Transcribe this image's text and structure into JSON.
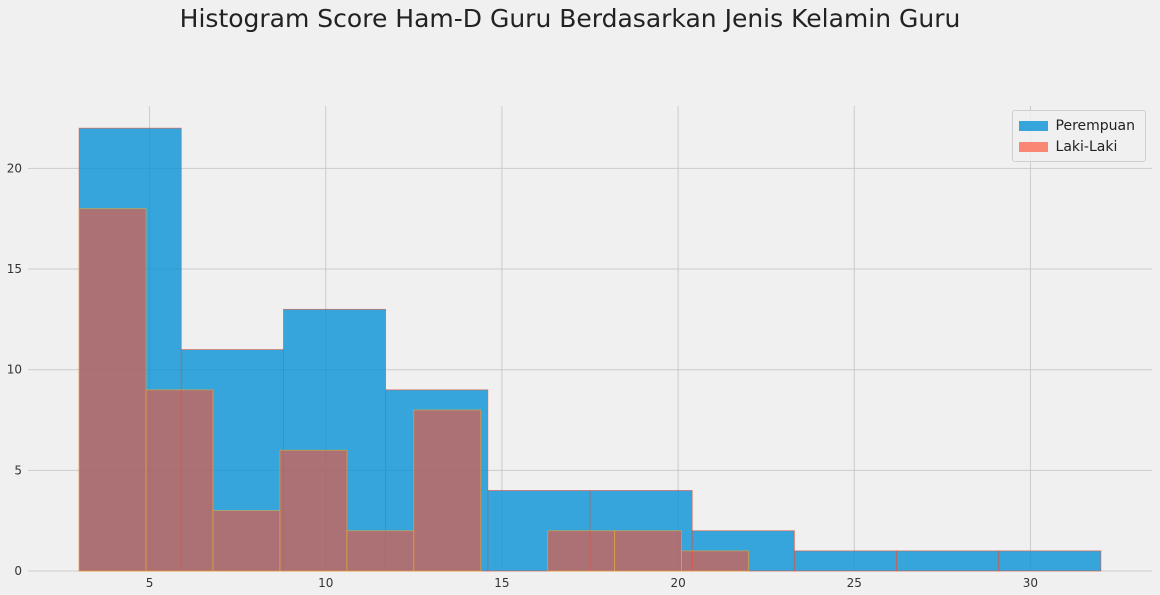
{
  "chart_data": {
    "type": "bar",
    "title": "Histogram Score Ham-D Guru Berdasarkan Jenis Kelamin Guru",
    "xlabel": "",
    "ylabel": "",
    "xlim": [
      1.55,
      33.45
    ],
    "ylim": [
      0,
      23.1
    ],
    "xticks": [
      5,
      10,
      15,
      20,
      25,
      30
    ],
    "yticks": [
      0,
      5,
      10,
      15,
      20
    ],
    "grid": true,
    "legend_position": "top-right",
    "series": [
      {
        "name": "Perempuan",
        "color": "#008fd5",
        "edgecolor": "#e5533c",
        "bins": [
          {
            "x0": 3.0,
            "x1": 5.9,
            "count": 22
          },
          {
            "x0": 5.9,
            "x1": 8.8,
            "count": 11
          },
          {
            "x0": 8.8,
            "x1": 11.7,
            "count": 13
          },
          {
            "x0": 11.7,
            "x1": 14.6,
            "count": 9
          },
          {
            "x0": 14.6,
            "x1": 17.5,
            "count": 4
          },
          {
            "x0": 17.5,
            "x1": 20.4,
            "count": 4
          },
          {
            "x0": 20.4,
            "x1": 23.3,
            "count": 2
          },
          {
            "x0": 23.3,
            "x1": 26.2,
            "count": 1
          },
          {
            "x0": 26.2,
            "x1": 29.1,
            "count": 1
          },
          {
            "x0": 29.1,
            "x1": 32.0,
            "count": 1
          }
        ]
      },
      {
        "name": "Laki-Laki",
        "color": "#fc4f30",
        "edgecolor": "#e5ae38",
        "bins": [
          {
            "x0": 3.0,
            "x1": 4.9,
            "count": 18
          },
          {
            "x0": 4.9,
            "x1": 6.8,
            "count": 9
          },
          {
            "x0": 6.8,
            "x1": 8.7,
            "count": 3
          },
          {
            "x0": 8.7,
            "x1": 10.6,
            "count": 6
          },
          {
            "x0": 10.6,
            "x1": 12.5,
            "count": 2
          },
          {
            "x0": 12.5,
            "x1": 14.4,
            "count": 8
          },
          {
            "x0": 14.4,
            "x1": 16.3,
            "count": 0
          },
          {
            "x0": 16.3,
            "x1": 18.2,
            "count": 2
          },
          {
            "x0": 18.2,
            "x1": 20.1,
            "count": 2
          },
          {
            "x0": 20.1,
            "x1": 22.0,
            "count": 1
          }
        ]
      }
    ]
  }
}
